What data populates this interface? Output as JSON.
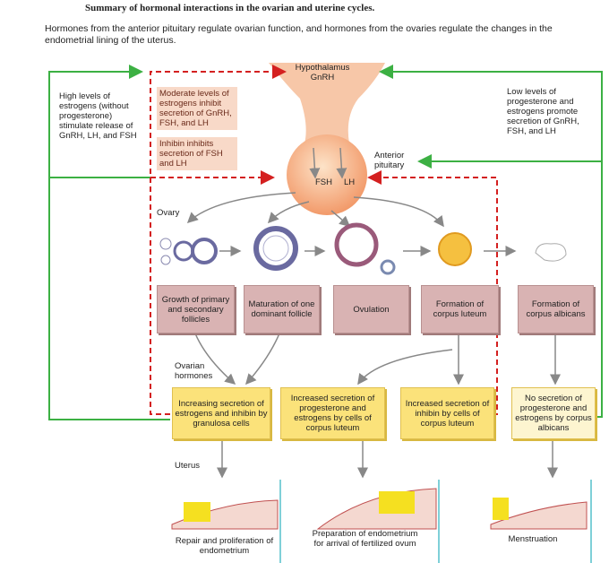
{
  "title": "Summary of hormonal interactions in the ovarian and uterine cycles.",
  "intro": "Hormones from the anterior pituitary regulate ovarian function, and hormones from the ovaries regulate the changes in the endometrial lining of the uterus.",
  "hypothalamus": {
    "label": "Hypothalamus",
    "hormone": "GnRH"
  },
  "pituitary": {
    "label": "Anterior pituitary",
    "hormones": [
      "FSH",
      "LH"
    ]
  },
  "feedback": {
    "left": "High levels of estrogens (without progesterone) stimulate release of GnRH, LH, and FSH",
    "right": "Low levels of progesterone and estrogens promote secretion of GnRH, FSH, and LH",
    "inhibitory": [
      "Moderate levels of estrogens inhibit secretion of GnRH, FSH, and LH",
      "Inhibin inhibits secretion of FSH and LH"
    ]
  },
  "ovary": {
    "label": "Ovary",
    "stages": [
      "Growth of primary and secondary follicles",
      "Maturation of one dominant follicle",
      "Ovulation",
      "Formation of corpus luteum",
      "Formation of corpus albicans"
    ]
  },
  "ovarian_hormones": {
    "label": "Ovarian hormones",
    "boxes": [
      "Increasing secretion of estrogens and inhibin by granulosa cells",
      "Increased secretion of progesterone and estrogens by cells of corpus luteum",
      "Increased secretion of inhibin by cells of corpus luteum",
      "No secretion of progesterone and estrogens  by corpus albicans"
    ]
  },
  "uterus": {
    "label": "Uterus",
    "phases": [
      "Repair and proliferation of endometrium",
      "Preparation of endometrium for arrival of fertilized ovum",
      "Menstruation"
    ]
  }
}
